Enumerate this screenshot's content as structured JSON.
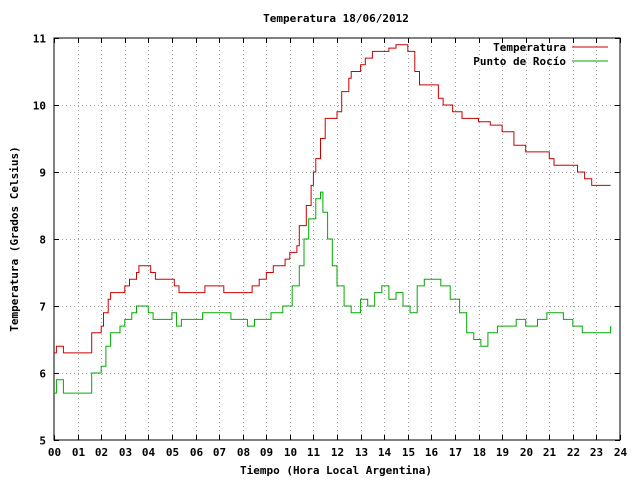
{
  "chart_data": {
    "type": "line",
    "title": "Temperatura 18/06/2012",
    "xlabel": "Tiempo (Hora Local Argentina)",
    "ylabel": "Temperatura (Grados Celsius)",
    "xlim": [
      0,
      24
    ],
    "ylim": [
      5,
      11
    ],
    "grid": true,
    "legend_position": "top-right",
    "x_ticks": [
      0,
      1,
      2,
      3,
      4,
      5,
      6,
      7,
      8,
      9,
      10,
      11,
      12,
      13,
      14,
      15,
      16,
      17,
      18,
      19,
      20,
      21,
      22,
      23,
      24
    ],
    "x_tick_labels": [
      "00",
      "01",
      "02",
      "03",
      "04",
      "05",
      "06",
      "07",
      "08",
      "09",
      "10",
      "11",
      "12",
      "13",
      "14",
      "15",
      "16",
      "17",
      "18",
      "19",
      "20",
      "21",
      "22",
      "23",
      "24"
    ],
    "y_ticks": [
      5,
      6,
      7,
      8,
      9,
      10,
      11
    ],
    "y_tick_labels": [
      "5",
      "6",
      "7",
      "8",
      "9",
      "10",
      "11"
    ],
    "series": [
      {
        "name": "Temperatura",
        "color": "#cc0000",
        "points": [
          [
            0,
            6.3
          ],
          [
            0.1,
            6.4
          ],
          [
            0.4,
            6.3
          ],
          [
            1.5,
            6.3
          ],
          [
            1.6,
            6.6
          ],
          [
            2.0,
            6.7
          ],
          [
            2.1,
            6.9
          ],
          [
            2.3,
            7.1
          ],
          [
            2.4,
            7.2
          ],
          [
            3.0,
            7.3
          ],
          [
            3.2,
            7.4
          ],
          [
            3.5,
            7.5
          ],
          [
            3.6,
            7.6
          ],
          [
            4.1,
            7.5
          ],
          [
            4.3,
            7.4
          ],
          [
            5.1,
            7.3
          ],
          [
            5.3,
            7.2
          ],
          [
            6.4,
            7.3
          ],
          [
            7.2,
            7.2
          ],
          [
            8.4,
            7.3
          ],
          [
            8.7,
            7.4
          ],
          [
            9.0,
            7.5
          ],
          [
            9.3,
            7.6
          ],
          [
            9.8,
            7.7
          ],
          [
            10.0,
            7.8
          ],
          [
            10.3,
            7.9
          ],
          [
            10.4,
            8.2
          ],
          [
            10.7,
            8.5
          ],
          [
            10.9,
            8.8
          ],
          [
            11.0,
            9.0
          ],
          [
            11.1,
            9.2
          ],
          [
            11.3,
            9.5
          ],
          [
            11.5,
            9.8
          ],
          [
            12.0,
            9.9
          ],
          [
            12.2,
            10.2
          ],
          [
            12.5,
            10.4
          ],
          [
            12.6,
            10.5
          ],
          [
            13.0,
            10.6
          ],
          [
            13.2,
            10.7
          ],
          [
            13.5,
            10.8
          ],
          [
            14.2,
            10.85
          ],
          [
            14.5,
            10.9
          ],
          [
            15.0,
            10.8
          ],
          [
            15.3,
            10.5
          ],
          [
            15.5,
            10.3
          ],
          [
            16.3,
            10.1
          ],
          [
            16.5,
            10.0
          ],
          [
            16.9,
            9.9
          ],
          [
            17.3,
            9.8
          ],
          [
            18.0,
            9.75
          ],
          [
            18.5,
            9.7
          ],
          [
            19.0,
            9.6
          ],
          [
            19.5,
            9.4
          ],
          [
            20.0,
            9.3
          ],
          [
            21.0,
            9.2
          ],
          [
            21.2,
            9.1
          ],
          [
            22.2,
            9.0
          ],
          [
            22.5,
            8.9
          ],
          [
            22.8,
            8.8
          ],
          [
            23.6,
            8.8
          ]
        ]
      },
      {
        "name": "Punto de Rocío",
        "color": "#00aa00",
        "points": [
          [
            0,
            5.7
          ],
          [
            0.1,
            5.9
          ],
          [
            0.4,
            5.7
          ],
          [
            1.5,
            5.7
          ],
          [
            1.6,
            6.0
          ],
          [
            2.0,
            6.1
          ],
          [
            2.2,
            6.4
          ],
          [
            2.4,
            6.6
          ],
          [
            2.8,
            6.7
          ],
          [
            3.0,
            6.8
          ],
          [
            3.3,
            6.9
          ],
          [
            3.5,
            7.0
          ],
          [
            4.0,
            6.9
          ],
          [
            4.2,
            6.8
          ],
          [
            5.0,
            6.9
          ],
          [
            5.2,
            6.7
          ],
          [
            5.4,
            6.8
          ],
          [
            6.3,
            6.9
          ],
          [
            7.5,
            6.8
          ],
          [
            8.2,
            6.7
          ],
          [
            8.5,
            6.8
          ],
          [
            9.2,
            6.9
          ],
          [
            9.7,
            7.0
          ],
          [
            10.1,
            7.3
          ],
          [
            10.4,
            7.6
          ],
          [
            10.6,
            8.0
          ],
          [
            10.8,
            8.3
          ],
          [
            11.1,
            8.6
          ],
          [
            11.3,
            8.7
          ],
          [
            11.4,
            8.4
          ],
          [
            11.6,
            8.0
          ],
          [
            11.8,
            7.6
          ],
          [
            12.0,
            7.3
          ],
          [
            12.3,
            7.0
          ],
          [
            12.6,
            6.9
          ],
          [
            13.0,
            7.1
          ],
          [
            13.3,
            7.0
          ],
          [
            13.6,
            7.2
          ],
          [
            13.9,
            7.3
          ],
          [
            14.2,
            7.1
          ],
          [
            14.5,
            7.2
          ],
          [
            14.8,
            7.0
          ],
          [
            15.1,
            6.9
          ],
          [
            15.4,
            7.3
          ],
          [
            15.7,
            7.4
          ],
          [
            16.1,
            7.4
          ],
          [
            16.4,
            7.3
          ],
          [
            16.8,
            7.1
          ],
          [
            17.2,
            6.9
          ],
          [
            17.5,
            6.6
          ],
          [
            17.8,
            6.5
          ],
          [
            18.1,
            6.4
          ],
          [
            18.4,
            6.6
          ],
          [
            18.8,
            6.7
          ],
          [
            19.2,
            6.7
          ],
          [
            19.6,
            6.8
          ],
          [
            20.0,
            6.7
          ],
          [
            20.5,
            6.8
          ],
          [
            20.9,
            6.9
          ],
          [
            21.2,
            6.9
          ],
          [
            21.6,
            6.8
          ],
          [
            22.0,
            6.7
          ],
          [
            22.4,
            6.6
          ],
          [
            22.8,
            6.6
          ],
          [
            23.2,
            6.6
          ],
          [
            23.6,
            6.7
          ]
        ]
      }
    ]
  }
}
